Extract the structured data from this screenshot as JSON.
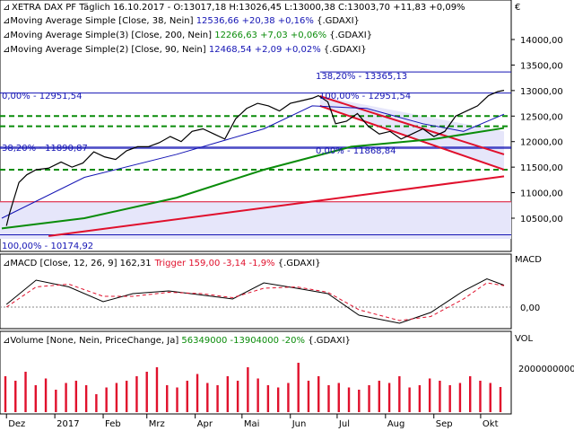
{
  "header": {
    "title_line": "XETRA DAX PF Täglich  16.10.2017 - O:13017,18 H:13026,45 L:13000,38 C:13003,70 +11,83 +0,09%",
    "currency": "€",
    "ma_lines": [
      {
        "prefix": "Moving Average Simple [Close, 38, Nein] ",
        "value": "12536,66 +20,38 +0,16%",
        "suffix": " {.GDAXI}",
        "color": "#1414b4"
      },
      {
        "prefix": "Moving Average Simple(3) [Close, 200, Nein] ",
        "value": "12266,63 +7,03 +0,06%",
        "suffix": " {.GDAXI}",
        "color": "#0a8c0a"
      },
      {
        "prefix": "Moving Average Simple(2) [Close, 90, Nein] ",
        "value": "12468,54 +2,09 +0,02%",
        "suffix": " {.GDAXI}",
        "color": "#1414b4"
      }
    ]
  },
  "price_axis": [
    "14000,00",
    "13500,00",
    "13000,00",
    "12500,00",
    "12000,00",
    "11500,00",
    "11000,00",
    "10500,00"
  ],
  "fib_labels": {
    "f138": "138,20% - 13365,13",
    "f100a": "0,00% - 12951,54",
    "f100b": "100,00% - 12951,54",
    "f382": "38,20% - 11890,87",
    "fmid": "0,00% - 11868,84",
    "f100c": "100,00% - 10174,92"
  },
  "macd": {
    "title": "MACD [Close, 12, 26, 9] 162,31",
    "trigger": "Trigger 159,00 -3,14 -1,9%",
    "suffix": " {.GDAXI}",
    "axis_label": "MACD",
    "zero_label": "0,00"
  },
  "volume": {
    "title": "Volume [None, Nein, PriceChange, Ja] ",
    "value": "56349000 -13904000 -20%",
    "suffix": " {.GDAXI}",
    "axis_label": "VOL",
    "tick_label": "2000000000"
  },
  "date_axis": {
    "months": [
      "Dez",
      "2017",
      "Feb",
      "Mrz",
      "Apr",
      "Mai",
      "Jun",
      "Jul",
      "Aug",
      "Sep",
      "Okt"
    ]
  },
  "colors": {
    "price": "#000000",
    "ma38": "#1414b4",
    "ma200": "#0a8c0a",
    "trend": "#e0102c",
    "fib": "#1414b4",
    "fill": "#e6e6fa"
  },
  "chart_data": {
    "type": "line",
    "x_range": [
      "2016-11-28",
      "2017-10-16"
    ],
    "ylim": [
      9950,
      14400
    ],
    "price_close_series": {
      "x": [
        "2016-12-01",
        "2016-12-03",
        "2016-12-06",
        "2016-12-09",
        "2016-12-14",
        "2016-12-20",
        "2016-12-28",
        "2017-01-05",
        "2017-01-12",
        "2017-01-19",
        "2017-01-26",
        "2017-02-02",
        "2017-02-09",
        "2017-02-16",
        "2017-02-23",
        "2017-03-02",
        "2017-03-09",
        "2017-03-16",
        "2017-03-23",
        "2017-03-30",
        "2017-04-06",
        "2017-04-13",
        "2017-04-20",
        "2017-04-27",
        "2017-05-04",
        "2017-05-11",
        "2017-05-18",
        "2017-05-25",
        "2017-06-01",
        "2017-06-08",
        "2017-06-15",
        "2017-06-19",
        "2017-06-25",
        "2017-06-30",
        "2017-07-07",
        "2017-07-14",
        "2017-07-21",
        "2017-07-28",
        "2017-08-04",
        "2017-08-11",
        "2017-08-18",
        "2017-08-25",
        "2017-09-01",
        "2017-09-08",
        "2017-09-15",
        "2017-09-22",
        "2017-09-29",
        "2017-10-06",
        "2017-10-12",
        "2017-10-16"
      ],
      "values": [
        10350,
        10600,
        10900,
        11200,
        11350,
        11450,
        11480,
        11600,
        11500,
        11580,
        11800,
        11700,
        11650,
        11820,
        11900,
        11900,
        11980,
        12100,
        12000,
        12200,
        12250,
        12150,
        12050,
        12450,
        12650,
        12750,
        12700,
        12600,
        12750,
        12800,
        12850,
        12900,
        12780,
        12350,
        12400,
        12550,
        12300,
        12150,
        12200,
        12050,
        12150,
        12250,
        12100,
        12200,
        12500,
        12600,
        12700,
        12900,
        12980,
        13003.7
      ]
    },
    "ma200_series": {
      "x": [
        "2016-11-28",
        "2017-01-20",
        "2017-03-20",
        "2017-05-15",
        "2017-07-10",
        "2017-09-01",
        "2017-10-16"
      ],
      "values": [
        10300,
        10500,
        10900,
        11450,
        11900,
        12050,
        12266.63
      ]
    },
    "ma38_series": {
      "x": [
        "2016-11-28",
        "2017-01-20",
        "2017-03-20",
        "2017-05-15",
        "2017-06-15",
        "2017-07-20",
        "2017-08-25",
        "2017-09-20",
        "2017-10-16"
      ],
      "values": [
        10500,
        11300,
        11750,
        12250,
        12700,
        12650,
        12350,
        12200,
        12536.66
      ]
    },
    "trendlines": [
      {
        "x": [
          "2017-06-20",
          "2017-10-16"
        ],
        "values": [
          12890,
          11750
        ]
      },
      {
        "x": [
          "2017-06-20",
          "2017-10-16"
        ],
        "values": [
          12700,
          11450
        ]
      },
      {
        "x": [
          "2016-12-28",
          "2017-10-16"
        ],
        "values": [
          10150,
          11320
        ]
      }
    ],
    "horizontal_levels": [
      13365.13,
      12951.54,
      12500,
      12300,
      11890.87,
      11868.84,
      11450,
      10820,
      10174.92
    ],
    "macd_series": {
      "x": [
        "2016-12-01",
        "2016-12-20",
        "2017-01-10",
        "2017-02-01",
        "2017-02-20",
        "2017-03-15",
        "2017-04-05",
        "2017-04-25",
        "2017-05-15",
        "2017-06-05",
        "2017-06-25",
        "2017-07-15",
        "2017-08-10",
        "2017-08-30",
        "2017-09-20",
        "2017-10-05",
        "2017-10-16"
      ],
      "values": [
        20,
        200,
        150,
        40,
        100,
        120,
        90,
        60,
        180,
        140,
        100,
        -60,
        -120,
        -40,
        120,
        210,
        162.31
      ]
    },
    "macd_trigger_series": {
      "x": [
        "2016-12-01",
        "2016-12-20",
        "2017-01-10",
        "2017-02-01",
        "2017-02-20",
        "2017-03-15",
        "2017-04-05",
        "2017-04-25",
        "2017-05-15",
        "2017-06-05",
        "2017-06-25",
        "2017-07-15",
        "2017-08-10",
        "2017-08-30",
        "2017-09-20",
        "2017-10-05",
        "2017-10-16"
      ],
      "values": [
        0,
        150,
        170,
        80,
        80,
        110,
        100,
        70,
        140,
        150,
        110,
        -20,
        -100,
        -70,
        60,
        180,
        159.0
      ]
    },
    "volume_values": [
      80,
      70,
      90,
      60,
      75,
      50,
      65,
      70,
      60,
      40,
      55,
      65,
      70,
      80,
      90,
      100,
      60,
      55,
      70,
      85,
      65,
      60,
      80,
      70,
      100,
      75,
      60,
      55,
      65,
      110,
      70,
      80,
      60,
      65,
      55,
      50,
      60,
      70,
      65,
      80,
      55,
      60,
      75,
      70,
      60,
      65,
      80,
      70,
      65,
      56
    ]
  }
}
